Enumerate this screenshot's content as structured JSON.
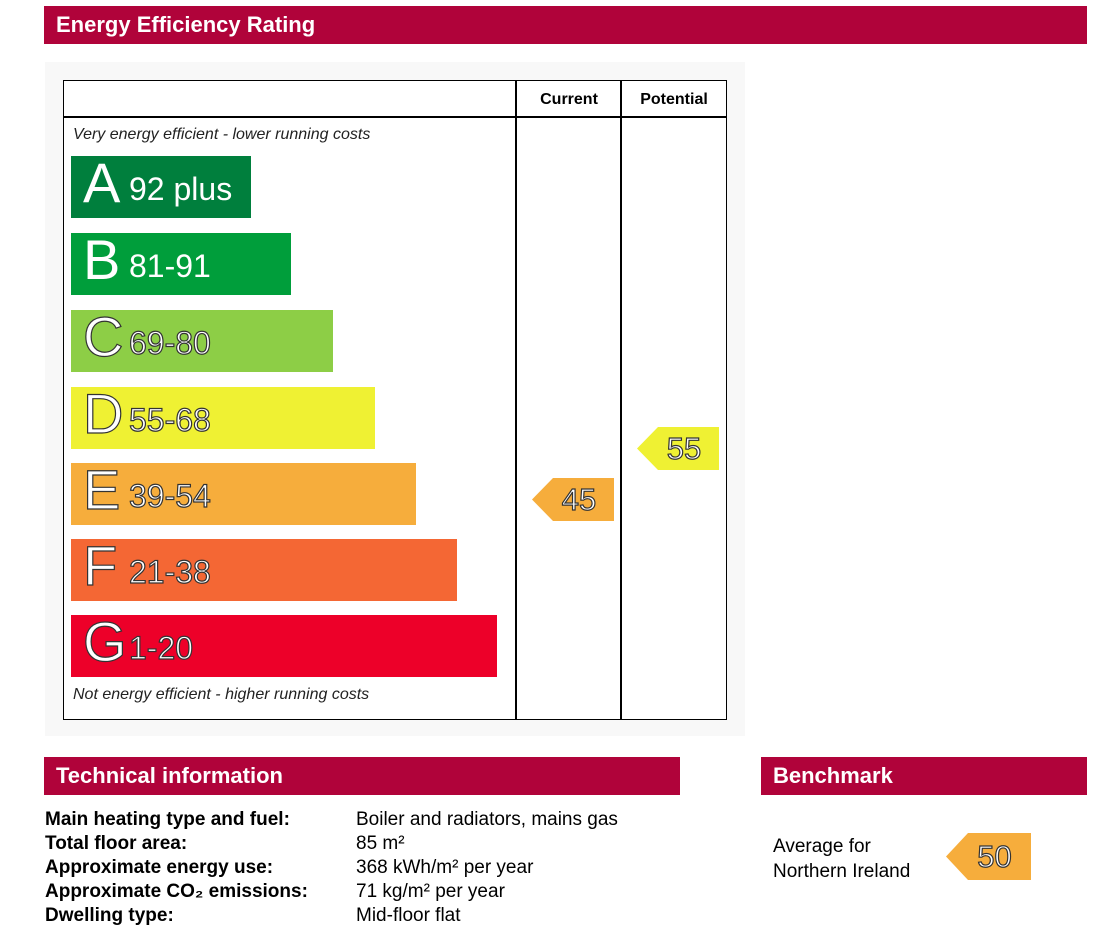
{
  "title": "Energy Efficiency Rating",
  "columns": {
    "current": "Current",
    "potential": "Potential"
  },
  "top_note": "Very energy efficient - lower running costs",
  "bottom_note": "Not energy efficient - higher running costs",
  "bands": [
    {
      "letter": "A",
      "range": "92 plus",
      "color": "#007f3d"
    },
    {
      "letter": "B",
      "range": "81-91",
      "color": "#009e3b"
    },
    {
      "letter": "C",
      "range": "69-80",
      "color": "#8dce46"
    },
    {
      "letter": "D",
      "range": "55-68",
      "color": "#eff133"
    },
    {
      "letter": "E",
      "range": "39-54",
      "color": "#f6ad3c"
    },
    {
      "letter": "F",
      "range": "21-38",
      "color": "#f46734"
    },
    {
      "letter": "G",
      "range": "1-20",
      "color": "#ed0029"
    }
  ],
  "current_rating": {
    "value": "45",
    "color": "#f6ad3c"
  },
  "potential_rating": {
    "value": "55",
    "color": "#eff133"
  },
  "technical": {
    "title": "Technical information",
    "rows": [
      {
        "label": "Main heating type and fuel:",
        "value": "Boiler and radiators, mains gas"
      },
      {
        "label": "Total floor area:",
        "value": "85 m²"
      },
      {
        "label": "Approximate energy use:",
        "value": "368 kWh/m² per year"
      },
      {
        "label": "Approximate CO₂ emissions:",
        "value": "71 kg/m² per year"
      },
      {
        "label": "Dwelling type:",
        "value": "Mid-floor flat"
      }
    ]
  },
  "benchmark": {
    "title": "Benchmark",
    "line1": "Average for",
    "line2": "Northern Ireland",
    "value": "50",
    "color": "#f6ad3c"
  }
}
